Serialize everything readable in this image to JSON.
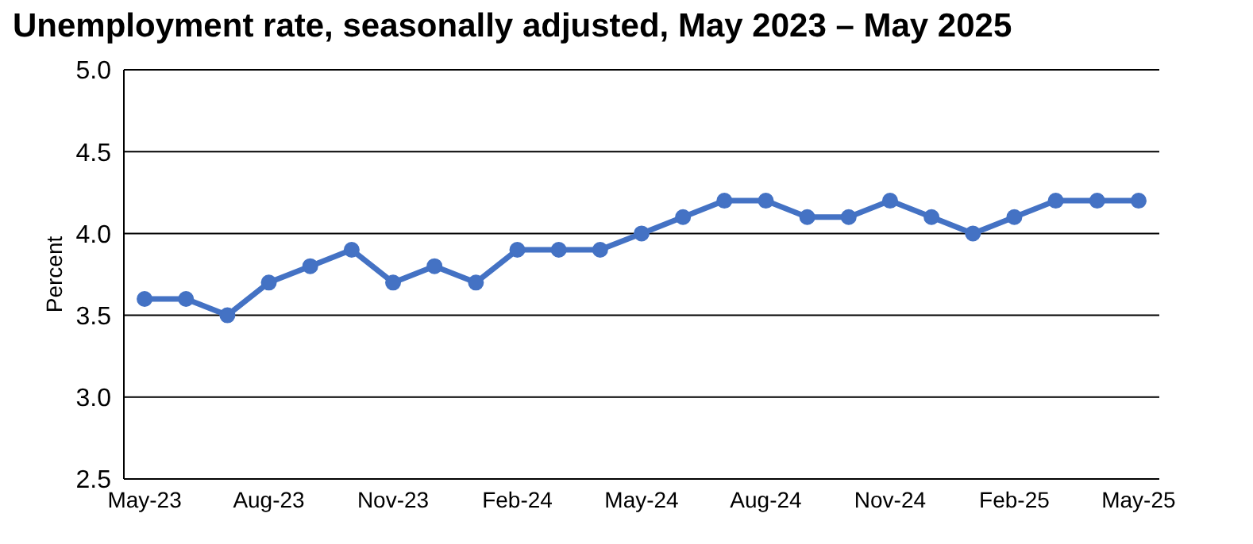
{
  "chart_data": {
    "type": "line",
    "title": "Unemployment rate, seasonally adjusted, May 2023 – May 2025",
    "ylabel": "Percent",
    "categories": [
      "May-23",
      null,
      null,
      "Aug-23",
      null,
      null,
      "Nov-23",
      null,
      null,
      "Feb-24",
      null,
      null,
      "May-24",
      null,
      null,
      "Aug-24",
      null,
      null,
      "Nov-24",
      null,
      null,
      "Feb-25",
      null,
      null,
      "May-25"
    ],
    "series": [
      {
        "color": "#4472c4",
        "values": [
          3.6,
          3.6,
          3.5,
          3.7,
          3.8,
          3.9,
          3.7,
          3.8,
          3.7,
          3.9,
          3.9,
          3.9,
          4.0,
          4.1,
          4.2,
          4.2,
          4.1,
          4.1,
          4.2,
          4.1,
          4.0,
          4.1,
          4.2,
          4.2,
          4.2
        ]
      }
    ],
    "ylim": [
      2.5,
      5.0
    ],
    "yticks": [
      {
        "value": 2.5,
        "label": "2.5"
      },
      {
        "value": 3,
        "label": "3.0"
      },
      {
        "value": 3.5,
        "label": "3.5"
      },
      {
        "value": 4,
        "label": "4.0"
      },
      {
        "value": 4.5,
        "label": "4.5"
      },
      {
        "value": 5,
        "label": "5.0"
      }
    ],
    "grid": "y",
    "marker": "circle",
    "line_style": "solid",
    "legend": false
  }
}
